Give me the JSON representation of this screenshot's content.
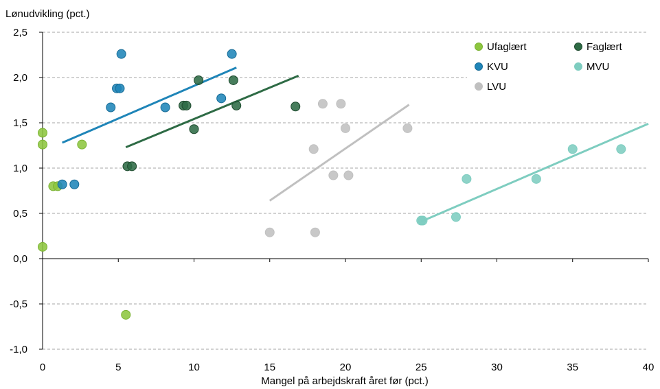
{
  "chart_data": {
    "type": "scatter",
    "ylabel": "Lønudvikling (pct.)",
    "xlabel": "Mangel på arbejdskraft året før (pct.)",
    "xlim": [
      0,
      40
    ],
    "ylim": [
      -1.0,
      2.5
    ],
    "x_ticks": [
      0,
      5,
      10,
      15,
      20,
      25,
      30,
      35,
      40
    ],
    "x_tick_labels": [
      "0",
      "5",
      "10",
      "15",
      "20",
      "25",
      "30",
      "35",
      "40"
    ],
    "y_ticks": [
      -1.0,
      -0.5,
      0.0,
      0.5,
      1.0,
      1.5,
      2.0,
      2.5
    ],
    "y_tick_labels": [
      "-1,0",
      "-0,5",
      "0,0",
      "0,5",
      "1,0",
      "1,5",
      "2,0",
      "2,5"
    ],
    "grid": "horizontal dashed",
    "legend_position": "top-right",
    "series": [
      {
        "name": "Ufaglært",
        "color": "#8dc63f",
        "edge": "#7ab232",
        "points": [
          [
            0.0,
            1.39
          ],
          [
            0.0,
            1.26
          ],
          [
            0.0,
            0.13
          ],
          [
            0.7,
            0.8
          ],
          [
            1.0,
            0.8
          ],
          [
            2.6,
            1.26
          ],
          [
            5.5,
            -0.62
          ]
        ],
        "trend": null
      },
      {
        "name": "Faglært",
        "color": "#2e6b45",
        "edge": "#1e4a2e",
        "points": [
          [
            5.6,
            1.02
          ],
          [
            5.9,
            1.02
          ],
          [
            9.3,
            1.69
          ],
          [
            9.5,
            1.69
          ],
          [
            10.0,
            1.43
          ],
          [
            10.3,
            1.97
          ],
          [
            12.6,
            1.97
          ],
          [
            12.8,
            1.69
          ],
          [
            16.7,
            1.68
          ]
        ],
        "trend": [
          [
            5.5,
            1.23
          ],
          [
            16.9,
            2.02
          ]
        ]
      },
      {
        "name": "KVU",
        "color": "#1f85b8",
        "edge": "#166b96",
        "points": [
          [
            1.3,
            0.82
          ],
          [
            2.1,
            0.82
          ],
          [
            4.5,
            1.67
          ],
          [
            4.9,
            1.88
          ],
          [
            5.1,
            1.88
          ],
          [
            5.2,
            2.26
          ],
          [
            8.1,
            1.67
          ],
          [
            11.8,
            1.77
          ],
          [
            12.5,
            2.26
          ]
        ],
        "trend": [
          [
            1.3,
            1.28
          ],
          [
            12.8,
            2.11
          ]
        ]
      },
      {
        "name": "MVU",
        "color": "#7ecdc0",
        "edge": "#7ecdc0",
        "points": [
          [
            25.0,
            0.42
          ],
          [
            25.1,
            0.42
          ],
          [
            27.3,
            0.46
          ],
          [
            28.0,
            0.88
          ],
          [
            32.6,
            0.88
          ],
          [
            35.0,
            1.21
          ],
          [
            38.2,
            1.21
          ]
        ],
        "trend": [
          [
            25.0,
            0.41
          ],
          [
            40.0,
            1.49
          ]
        ]
      },
      {
        "name": "LVU",
        "color": "#c0c0c0",
        "edge": "#c0c0c0",
        "points": [
          [
            15.0,
            0.29
          ],
          [
            17.9,
            1.21
          ],
          [
            18.0,
            0.29
          ],
          [
            18.5,
            1.71
          ],
          [
            19.2,
            0.92
          ],
          [
            19.7,
            1.71
          ],
          [
            20.0,
            1.44
          ],
          [
            20.2,
            0.92
          ],
          [
            24.1,
            1.44
          ]
        ],
        "trend": [
          [
            15.0,
            0.64
          ],
          [
            24.2,
            1.7
          ]
        ]
      }
    ]
  }
}
